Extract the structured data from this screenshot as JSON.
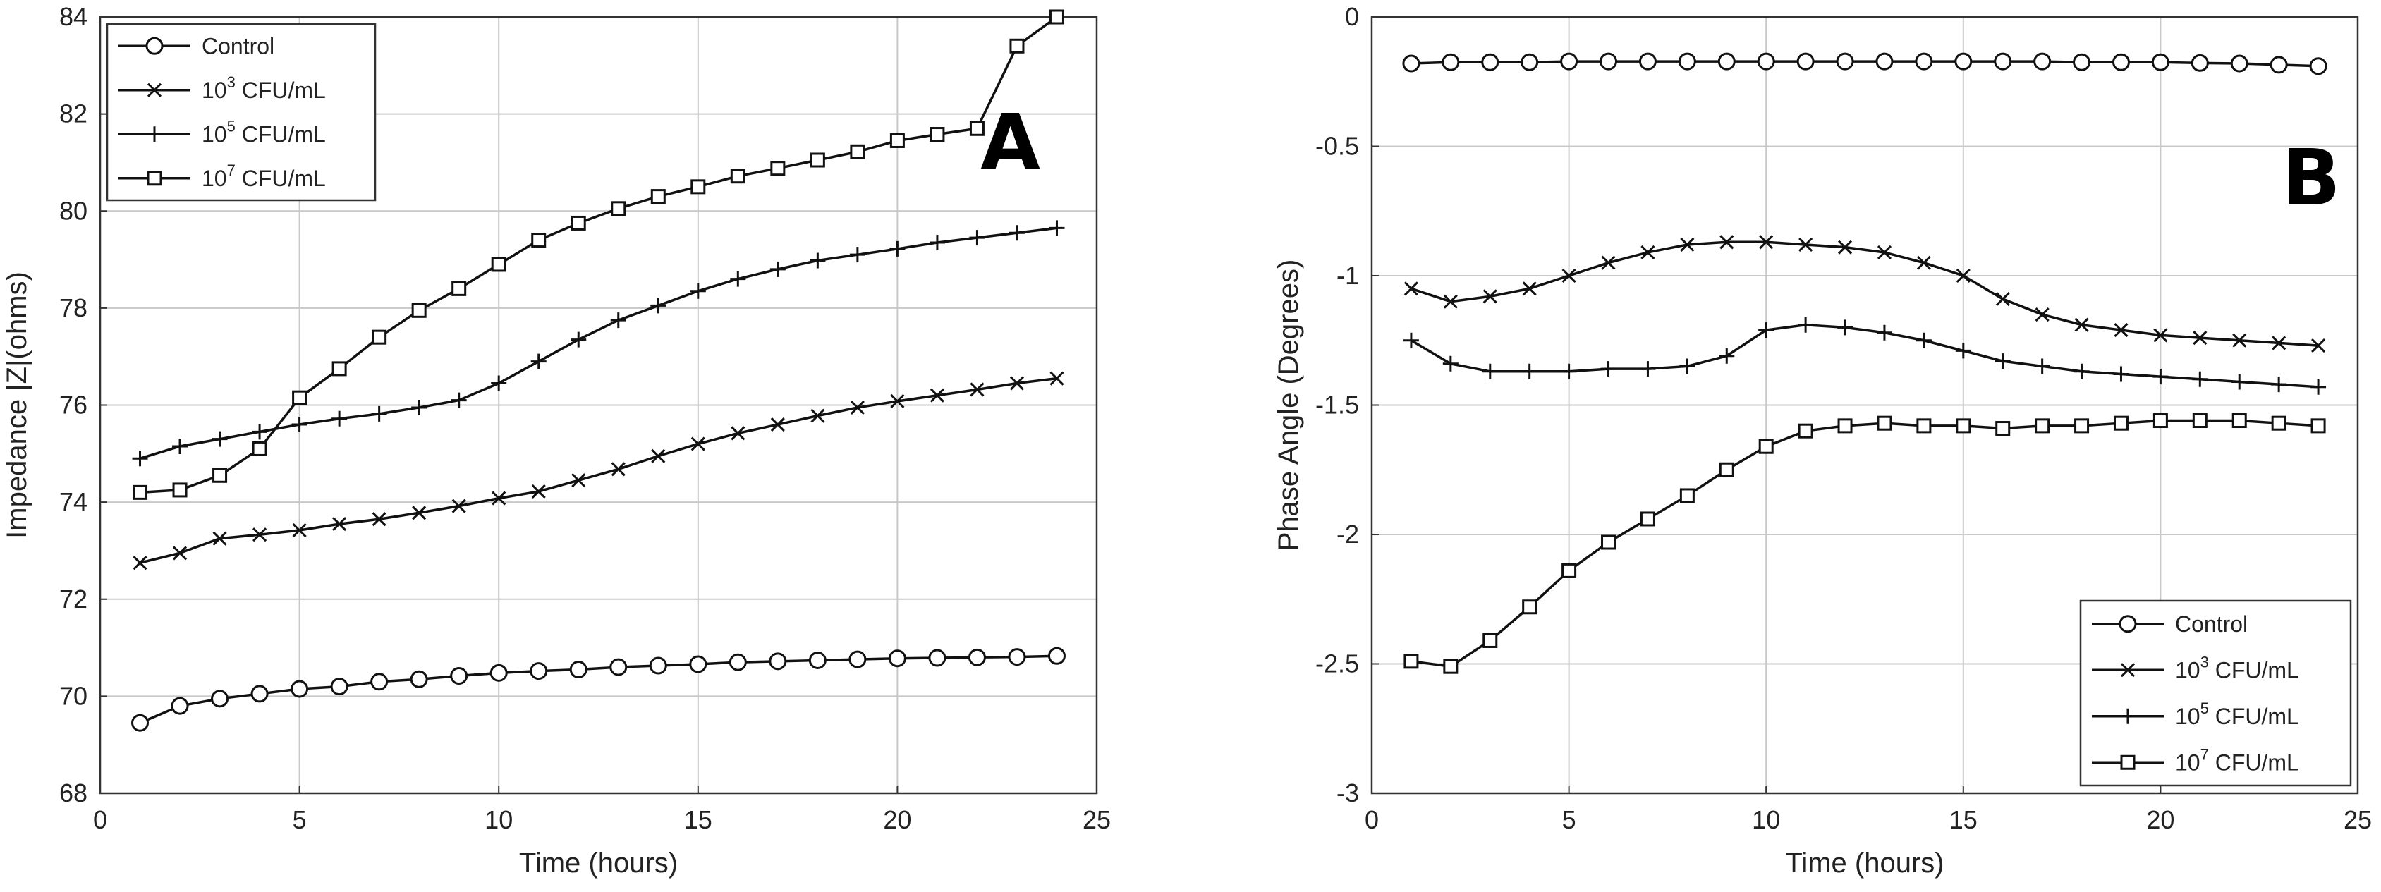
{
  "chart_data": [
    {
      "type": "line",
      "panel_label": "A",
      "xlabel": "Time (hours)",
      "ylabel": "Impedance |Z|(ohms)",
      "xlim": [
        0,
        25
      ],
      "ylim": [
        68,
        84
      ],
      "xticks": [
        "0",
        "5",
        "10",
        "15",
        "20",
        "25"
      ],
      "yticks": [
        "68",
        "70",
        "72",
        "74",
        "76",
        "78",
        "80",
        "82",
        "84"
      ],
      "grid": true,
      "legend_position": "top-left",
      "x": [
        1,
        2,
        3,
        4,
        5,
        6,
        7,
        8,
        9,
        10,
        11,
        12,
        13,
        14,
        15,
        16,
        17,
        18,
        19,
        20,
        21,
        22,
        23,
        24
      ],
      "series": [
        {
          "name": "Control",
          "marker": "circle",
          "values": [
            69.45,
            69.8,
            69.95,
            70.05,
            70.15,
            70.2,
            70.3,
            70.35,
            70.42,
            70.48,
            70.52,
            70.55,
            70.6,
            70.63,
            70.66,
            70.7,
            70.72,
            70.74,
            70.76,
            70.78,
            70.79,
            70.8,
            70.81,
            70.83
          ]
        },
        {
          "name": "10^3 CFU/mL",
          "name_base": "10",
          "name_exp": "3",
          "name_rest": " CFU/mL",
          "marker": "x",
          "values": [
            72.75,
            72.95,
            73.25,
            73.33,
            73.42,
            73.55,
            73.65,
            73.78,
            73.92,
            74.08,
            74.22,
            74.45,
            74.68,
            74.95,
            75.2,
            75.42,
            75.6,
            75.78,
            75.95,
            76.08,
            76.2,
            76.32,
            76.45,
            76.55
          ]
        },
        {
          "name": "10^5 CFU/mL",
          "name_base": "10",
          "name_exp": "5",
          "name_rest": " CFU/mL",
          "marker": "plus",
          "values": [
            74.9,
            75.15,
            75.3,
            75.45,
            75.6,
            75.72,
            75.82,
            75.95,
            76.1,
            76.45,
            76.9,
            77.35,
            77.75,
            78.05,
            78.35,
            78.6,
            78.8,
            78.98,
            79.1,
            79.22,
            79.35,
            79.45,
            79.55,
            79.65
          ]
        },
        {
          "name": "10^7 CFU/mL",
          "name_base": "10",
          "name_exp": "7",
          "name_rest": " CFU/mL",
          "marker": "square",
          "values": [
            74.2,
            74.25,
            74.55,
            75.1,
            76.15,
            76.75,
            77.4,
            77.95,
            78.4,
            78.9,
            79.4,
            79.75,
            80.05,
            80.3,
            80.5,
            80.72,
            80.88,
            81.05,
            81.22,
            81.45,
            81.58,
            81.7,
            83.4,
            84.0
          ]
        }
      ]
    },
    {
      "type": "line",
      "panel_label": "B",
      "xlabel": "Time (hours)",
      "ylabel": "Phase Angle (Degrees)",
      "xlim": [
        0,
        25
      ],
      "ylim": [
        -3,
        0
      ],
      "xticks": [
        "0",
        "5",
        "10",
        "15",
        "20",
        "25"
      ],
      "yticks": [
        "0",
        "-0.5",
        "-1",
        "-1.5",
        "-2",
        "-2.5",
        "-3"
      ],
      "grid": true,
      "legend_position": "bottom-right",
      "x": [
        1,
        2,
        3,
        4,
        5,
        6,
        7,
        8,
        9,
        10,
        11,
        12,
        13,
        14,
        15,
        16,
        17,
        18,
        19,
        20,
        21,
        22,
        23,
        24
      ],
      "series": [
        {
          "name": "Control",
          "marker": "circle",
          "values": [
            -0.18,
            -0.175,
            -0.175,
            -0.175,
            -0.172,
            -0.172,
            -0.172,
            -0.172,
            -0.172,
            -0.172,
            -0.172,
            -0.172,
            -0.172,
            -0.172,
            -0.172,
            -0.172,
            -0.172,
            -0.175,
            -0.175,
            -0.175,
            -0.178,
            -0.18,
            -0.185,
            -0.19
          ]
        },
        {
          "name": "10^3 CFU/mL",
          "name_base": "10",
          "name_exp": "3",
          "name_rest": " CFU/mL",
          "marker": "x",
          "values": [
            -1.05,
            -1.1,
            -1.08,
            -1.05,
            -1.0,
            -0.95,
            -0.91,
            -0.88,
            -0.87,
            -0.87,
            -0.88,
            -0.89,
            -0.91,
            -0.95,
            -1.0,
            -1.09,
            -1.15,
            -1.19,
            -1.21,
            -1.23,
            -1.24,
            -1.25,
            -1.26,
            -1.27
          ]
        },
        {
          "name": "10^5 CFU/mL",
          "name_base": "10",
          "name_exp": "5",
          "name_rest": " CFU/mL",
          "marker": "plus",
          "values": [
            -1.25,
            -1.34,
            -1.37,
            -1.37,
            -1.37,
            -1.36,
            -1.36,
            -1.35,
            -1.31,
            -1.21,
            -1.19,
            -1.2,
            -1.22,
            -1.25,
            -1.29,
            -1.33,
            -1.35,
            -1.37,
            -1.38,
            -1.39,
            -1.4,
            -1.41,
            -1.42,
            -1.43
          ]
        },
        {
          "name": "10^7 CFU/mL",
          "name_base": "10",
          "name_exp": "7",
          "name_rest": " CFU/mL",
          "marker": "square",
          "values": [
            -2.49,
            -2.51,
            -2.41,
            -2.28,
            -2.14,
            -2.03,
            -1.94,
            -1.85,
            -1.75,
            -1.66,
            -1.6,
            -1.58,
            -1.57,
            -1.58,
            -1.58,
            -1.59,
            -1.58,
            -1.58,
            -1.57,
            -1.56,
            -1.56,
            -1.56,
            -1.57,
            -1.58
          ]
        }
      ]
    }
  ]
}
